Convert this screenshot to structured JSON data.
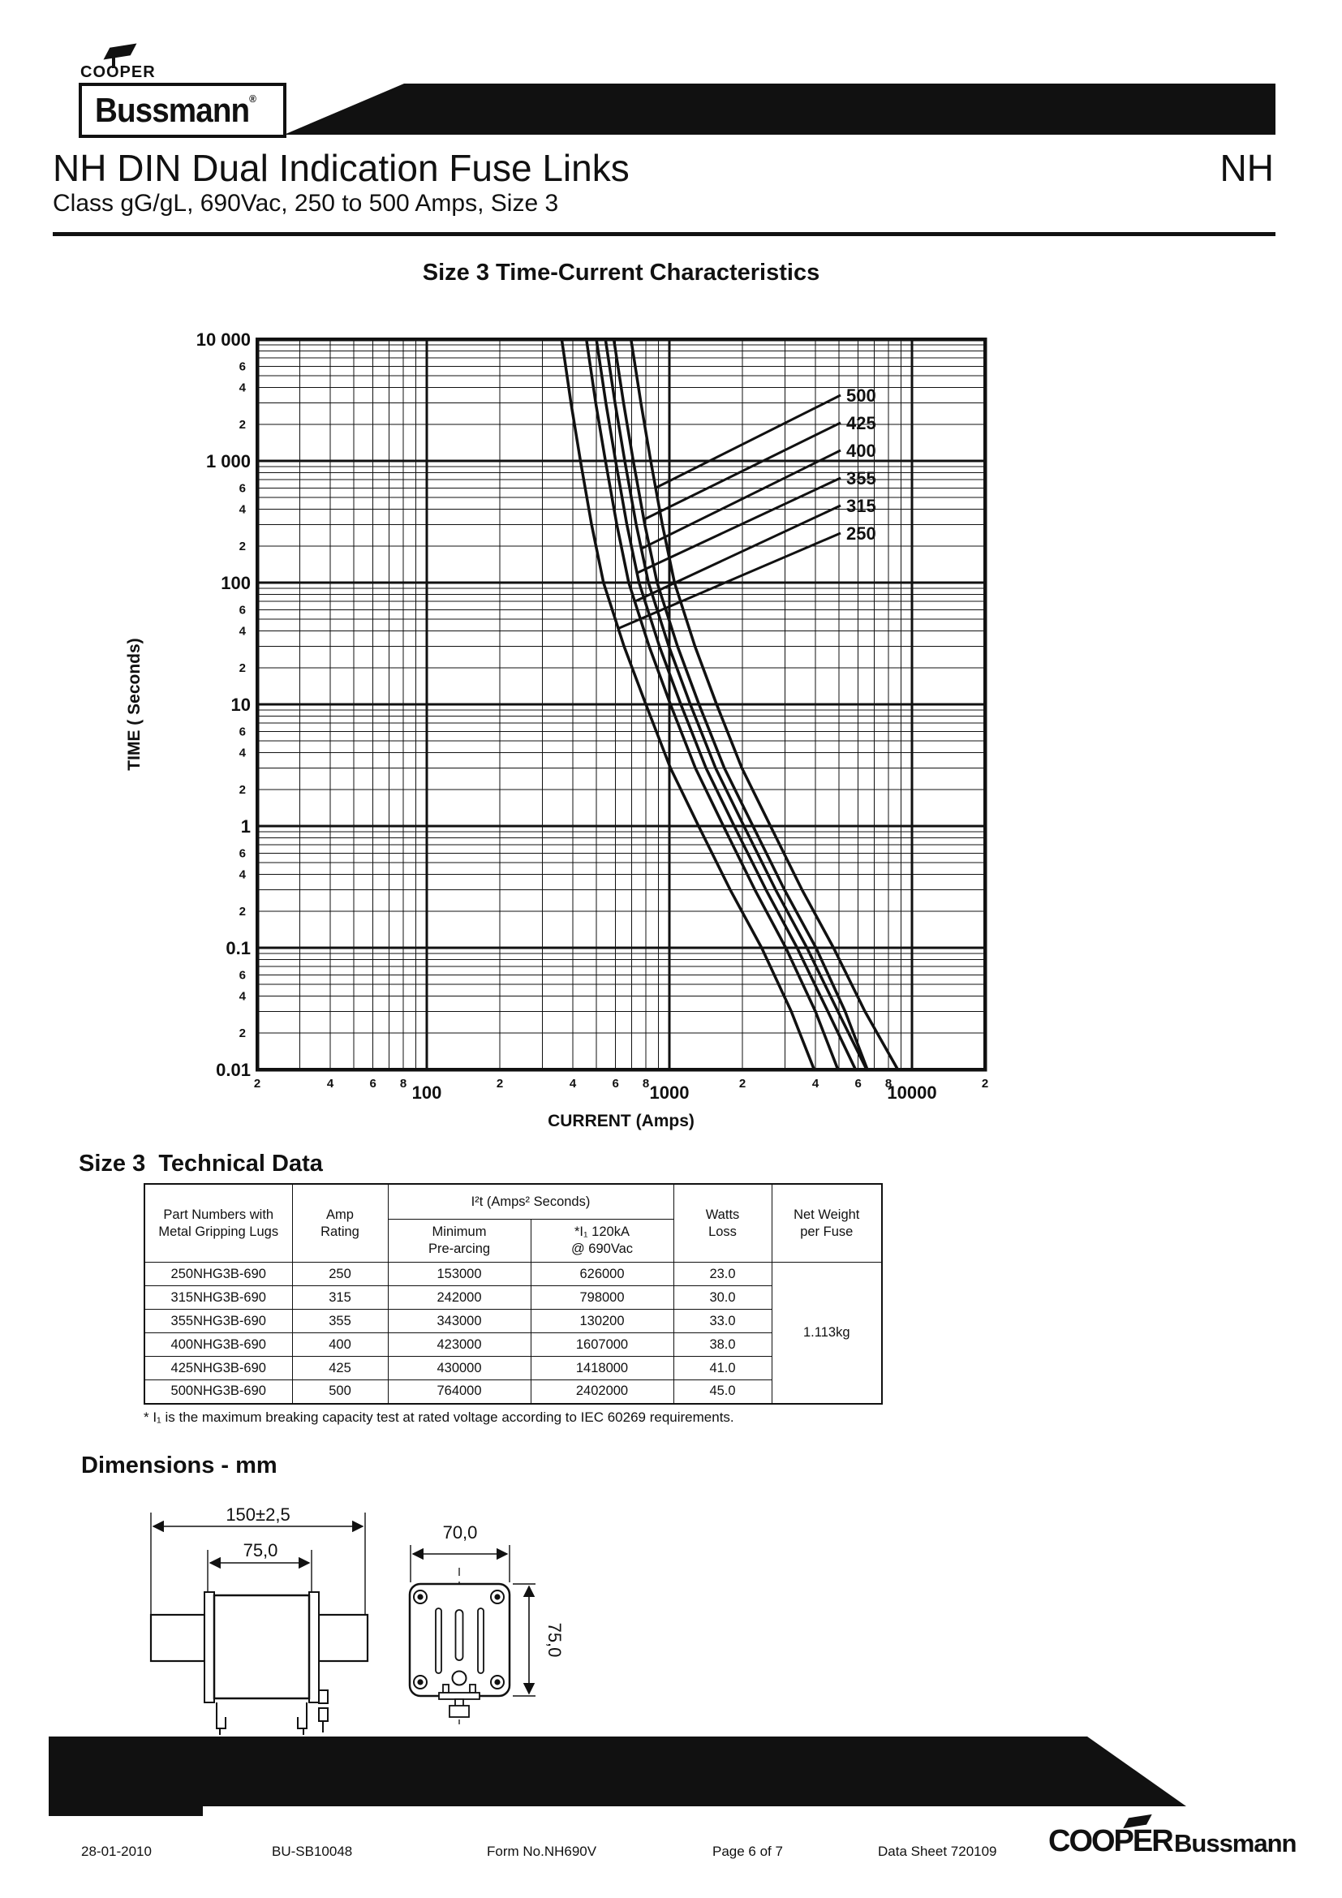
{
  "header": {
    "brand_small": "COOPER",
    "brand_logo": "Bussmann",
    "registered_mark": "®",
    "title": "NH DIN Dual Indication Fuse Links",
    "title_right": "NH",
    "subtitle": "Class gG/gL, 690Vac, 250 to 500 Amps, Size 3"
  },
  "chart_data": {
    "type": "line",
    "title": "Size 3 Time-Current Characteristics",
    "xlabel": "CURRENT (Amps)",
    "ylabel": "TIME  ( Seconds)",
    "x_scale": "log",
    "y_scale": "log",
    "xlim": [
      20,
      20000
    ],
    "ylim": [
      0.01,
      10000
    ],
    "grid": "log-log major+minor",
    "legend_position": "inside-right",
    "x_major_ticks": [
      100,
      1000,
      10000
    ],
    "x_major_tick_labels": [
      "100",
      "1000",
      "10000"
    ],
    "x_minor_tick_labels": [
      "2",
      "4",
      "6",
      "8"
    ],
    "y_major_ticks": [
      10000,
      1000,
      100,
      10,
      1,
      0.1,
      0.01
    ],
    "y_major_tick_labels": [
      "10 000",
      "1 000",
      "100",
      "10",
      "1",
      "0.1",
      "0.01"
    ],
    "y_minor_tick_labels": [
      "6",
      "4",
      "2"
    ],
    "legend_order": [
      "500",
      "425",
      "400",
      "355",
      "315",
      "250"
    ],
    "times_seconds": [
      10000,
      3000,
      1000,
      300,
      100,
      30,
      10,
      3,
      1,
      0.3,
      0.1,
      0.03,
      0.01
    ],
    "series": [
      {
        "name": "250",
        "amps": [
          360,
          393,
          430,
          478,
          535,
          650,
          800,
          1010,
          1320,
          1780,
          2400,
          3180,
          3950
        ]
      },
      {
        "name": "315",
        "amps": [
          455,
          497,
          545,
          607,
          680,
          825,
          1010,
          1280,
          1670,
          2250,
          3020,
          4000,
          4950
        ]
      },
      {
        "name": "355",
        "amps": [
          500,
          547,
          600,
          668,
          750,
          910,
          1115,
          1415,
          1850,
          2500,
          3360,
          4500,
          5850
        ]
      },
      {
        "name": "400",
        "amps": [
          545,
          597,
          655,
          730,
          820,
          995,
          1220,
          1550,
          2030,
          2740,
          3690,
          4950,
          6500
        ]
      },
      {
        "name": "425",
        "amps": [
          590,
          647,
          710,
          792,
          890,
          1080,
          1325,
          1685,
          2210,
          2980,
          4020,
          5300,
          6550
        ]
      },
      {
        "name": "500",
        "amps": [
          695,
          763,
          838,
          935,
          1050,
          1275,
          1565,
          1990,
          2610,
          3520,
          4750,
          6400,
          8740
        ]
      }
    ]
  },
  "table": {
    "heading": "Size 3  Technical Data",
    "headers": {
      "part": "Part Numbers with\nMetal Gripping Lugs",
      "amp": "Amp\nRating",
      "group": "I²t (Amps² Seconds)",
      "min_prearcing": "Minimum\nPre-arcing",
      "i1": "*I₁ 120kA\n@ 690Vac",
      "watts": "Watts\nLoss",
      "weight": "Net Weight\nper Fuse"
    },
    "rows": [
      [
        "250NHG3B-690",
        "250",
        "153000",
        "626000",
        "23.0"
      ],
      [
        "315NHG3B-690",
        "315",
        "242000",
        "798000",
        "30.0"
      ],
      [
        "355NHG3B-690",
        "355",
        "343000",
        "130200",
        "33.0"
      ],
      [
        "400NHG3B-690",
        "400",
        "423000",
        "1607000",
        "38.0"
      ],
      [
        "425NHG3B-690",
        "425",
        "430000",
        "1418000",
        "41.0"
      ],
      [
        "500NHG3B-690",
        "500",
        "764000",
        "2402000",
        "45.0"
      ]
    ],
    "net_weight": "1.113kg",
    "footnote": "* I₁ is the maximum breaking capacity test at rated voltage according to IEC 60269 requirements."
  },
  "dimensions": {
    "heading": "Dimensions - mm",
    "overall_width": "150±2,5",
    "body_width": "75,0",
    "face_width": "70,0",
    "face_height": "75,0"
  },
  "footer": {
    "date": "28-01-2010",
    "doc_number": "BU-SB10048",
    "form_number": "Form No.NH690V",
    "page": "Page 6 of 7",
    "datasheet": "Data Sheet 720109",
    "brand1": "COOPER",
    "brand2": "Bussmann"
  }
}
